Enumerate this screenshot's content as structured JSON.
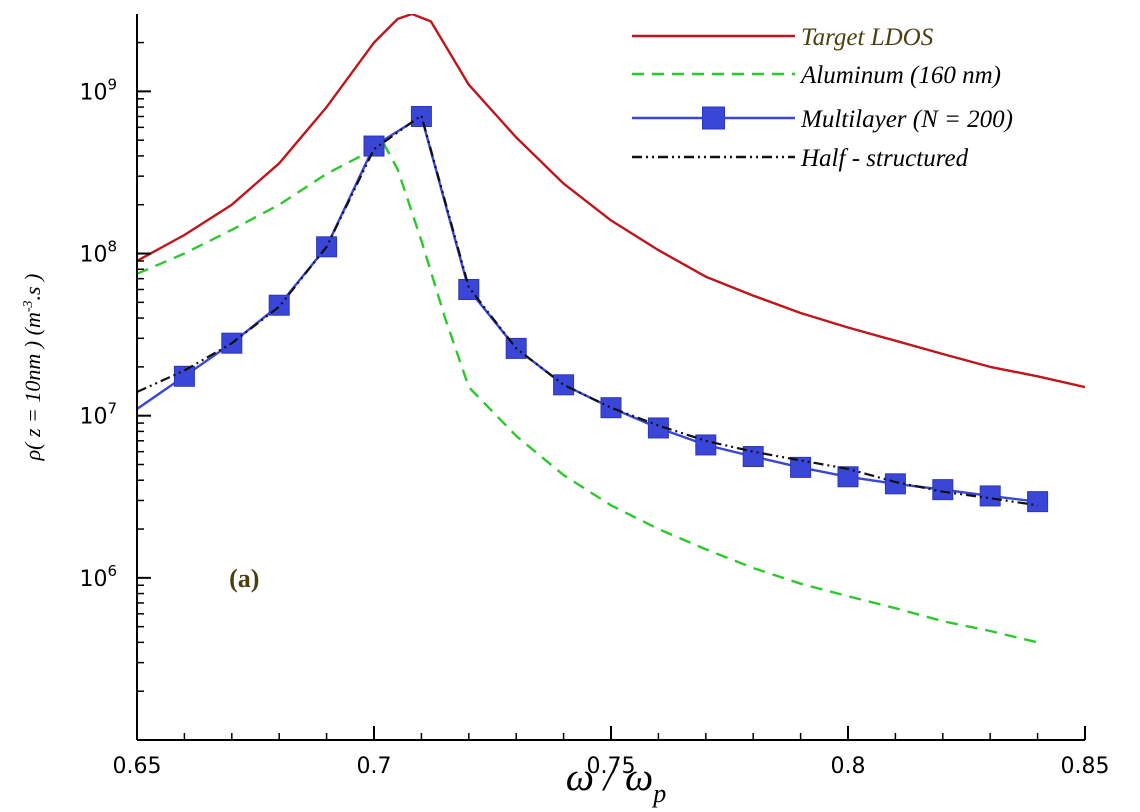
{
  "chart_data": {
    "type": "line",
    "xlabel": {
      "main": "ω / ω",
      "sub": "p"
    },
    "ylabel": {
      "main": "ρ( z = 10nm )    (m",
      "sup": "-3",
      "tail": ".s )"
    },
    "xlim": [
      0.65,
      0.85
    ],
    "ylim": [
      100000,
      3000000000
    ],
    "yscale": "log",
    "grid": false,
    "legend_position": "top-right",
    "x_ticks": [
      {
        "value": 0.65,
        "label": "0.65"
      },
      {
        "value": 0.7,
        "label": "0.7"
      },
      {
        "value": 0.75,
        "label": "0.75"
      },
      {
        "value": 0.8,
        "label": "0.8"
      },
      {
        "value": 0.85,
        "label": "0.85"
      }
    ],
    "y_ticks": [
      {
        "value": 1000000,
        "base": "10",
        "exp": "6"
      },
      {
        "value": 10000000,
        "base": "10",
        "exp": "7"
      },
      {
        "value": 100000000,
        "base": "10",
        "exp": "8"
      },
      {
        "value": 1000000000,
        "base": "10",
        "exp": "9"
      }
    ],
    "annotation": {
      "text": "(a)",
      "x": 0.665,
      "y": 1000000,
      "color": "#4a4010"
    },
    "series": [
      {
        "name": "Target LDOS",
        "color": "#c0151b",
        "style": "solid",
        "marker": "none",
        "x": [
          0.65,
          0.66,
          0.67,
          0.68,
          0.69,
          0.7,
          0.705,
          0.708,
          0.712,
          0.72,
          0.73,
          0.74,
          0.75,
          0.76,
          0.77,
          0.78,
          0.79,
          0.8,
          0.81,
          0.82,
          0.83,
          0.84,
          0.85
        ],
        "y": [
          90000000,
          130000000,
          200000000,
          360000000,
          800000000,
          2000000000,
          2800000000,
          3000000000,
          2700000000,
          1100000000,
          520000000,
          270000000,
          160000000,
          105000000,
          72000000,
          55000000,
          43000000,
          35000000,
          29000000,
          24000000,
          20000000,
          17500000,
          15000000
        ]
      },
      {
        "name": "Aluminum (160 nm)",
        "color": "#2dc82d",
        "style": "dashed",
        "marker": "none",
        "x": [
          0.65,
          0.66,
          0.67,
          0.68,
          0.69,
          0.7,
          0.702,
          0.705,
          0.71,
          0.715,
          0.72,
          0.73,
          0.74,
          0.75,
          0.76,
          0.77,
          0.78,
          0.79,
          0.8,
          0.81,
          0.82,
          0.83,
          0.84
        ],
        "y": [
          75000000,
          100000000,
          140000000,
          200000000,
          310000000,
          440000000,
          480000000,
          330000000,
          120000000,
          40000000,
          15000000,
          7500000,
          4300000,
          2800000,
          2000000,
          1500000,
          1150000,
          920000,
          770000,
          650000,
          540000,
          470000,
          400000
        ]
      },
      {
        "name": "Multilayer (N = 200)",
        "color": "#3a46d8",
        "style": "solid",
        "marker": "square",
        "x": [
          0.65,
          0.66,
          0.67,
          0.68,
          0.69,
          0.7,
          0.71,
          0.72,
          0.73,
          0.74,
          0.75,
          0.76,
          0.77,
          0.78,
          0.79,
          0.8,
          0.81,
          0.82,
          0.83,
          0.84
        ],
        "y": [
          11000000,
          17500000,
          28000000,
          48000000,
          110000000,
          460000000,
          700000000,
          60000000,
          26000000,
          15500000,
          11200000,
          8400000,
          6600000,
          5600000,
          4800000,
          4200000,
          3800000,
          3500000,
          3200000,
          2950000
        ],
        "marker_x": [
          0.66,
          0.67,
          0.68,
          0.69,
          0.7,
          0.71,
          0.72,
          0.73,
          0.74,
          0.75,
          0.76,
          0.77,
          0.78,
          0.79,
          0.8,
          0.81,
          0.82,
          0.83,
          0.84
        ]
      },
      {
        "name": "Half - structured",
        "color": "#111111",
        "style": "dashdotdot",
        "marker": "none",
        "x": [
          0.65,
          0.66,
          0.67,
          0.68,
          0.69,
          0.7,
          0.71,
          0.72,
          0.73,
          0.74,
          0.75,
          0.76,
          0.77,
          0.78,
          0.79,
          0.8,
          0.81,
          0.82,
          0.83,
          0.84
        ],
        "y": [
          14000000,
          19000000,
          28000000,
          47000000,
          110000000,
          440000000,
          710000000,
          62000000,
          26000000,
          15500000,
          11200000,
          8700000,
          7000000,
          6000000,
          5300000,
          4700000,
          3900000,
          3400000,
          3100000,
          2800000
        ]
      }
    ]
  }
}
